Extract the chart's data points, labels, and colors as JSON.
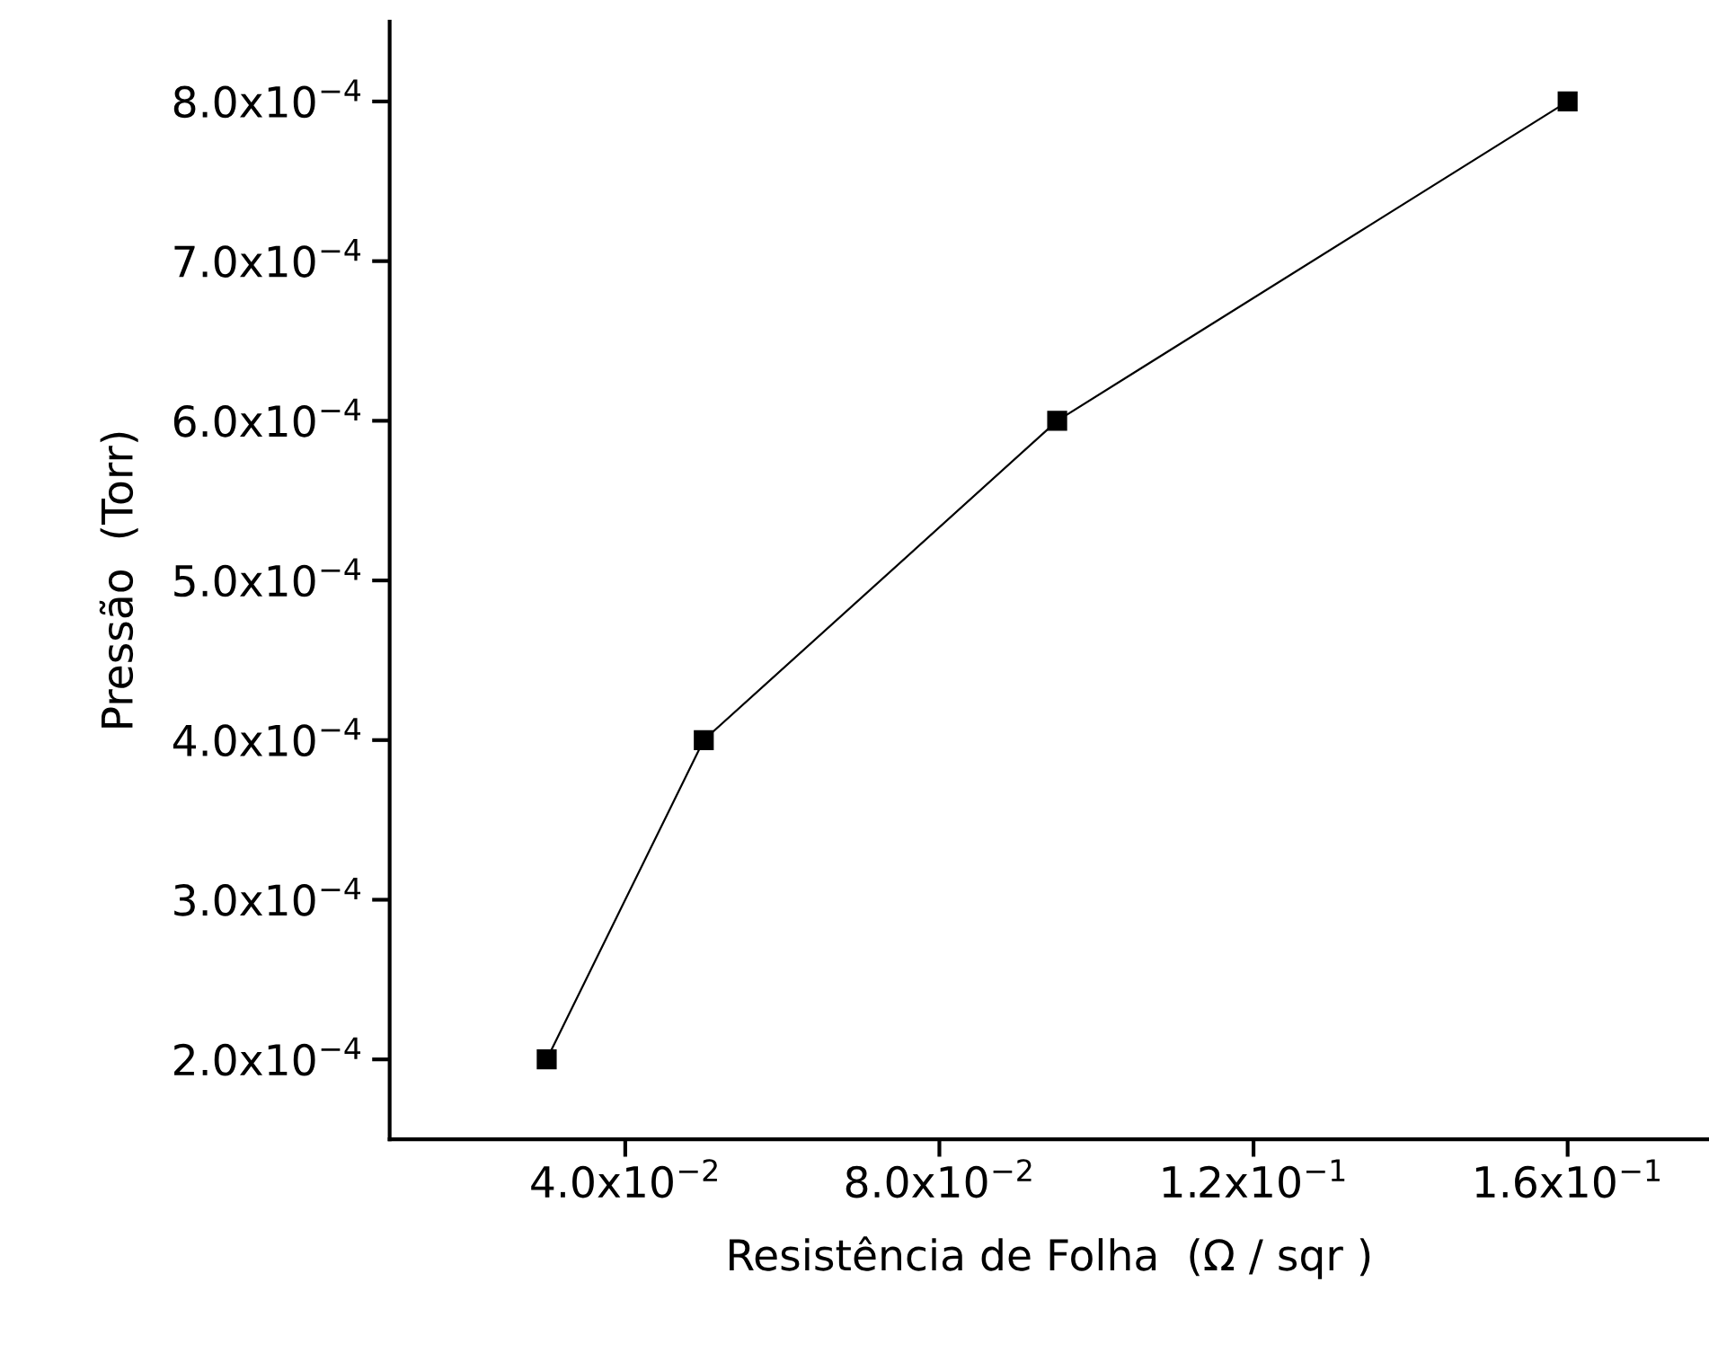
{
  "chart_data": {
    "type": "line",
    "xlabel": "Resistência de Folha  (Ω / sqr )",
    "ylabel": "Pressão  (Torr)",
    "x": [
      0.03,
      0.05,
      0.095,
      0.16
    ],
    "series": [
      {
        "color": "#000000",
        "values": [
          0.0002,
          0.0004,
          0.0006,
          0.0008
        ]
      }
    ],
    "marker": "square",
    "line_style": "solid",
    "grid": false,
    "legend": false,
    "xlim": [
      0.01,
      0.178
    ],
    "ylim": [
      0.00015,
      0.00085
    ],
    "xticks": [
      {
        "value": 0.04,
        "label": "4.0x10$^{−2}$"
      },
      {
        "value": 0.08,
        "label": "8.0x10$^{−2}$"
      },
      {
        "value": 0.12,
        "label": "1.2x10$^{−1}$"
      },
      {
        "value": 0.16,
        "label": "1.6x10$^{−1}$"
      }
    ],
    "yticks": [
      {
        "value": 0.0002,
        "label": "2.0x10$^{−4}$"
      },
      {
        "value": 0.0003,
        "label": "3.0x10$^{−4}$"
      },
      {
        "value": 0.0004,
        "label": "4.0x10$^{−4}$"
      },
      {
        "value": 0.0005,
        "label": "5.0x10$^{−4}$"
      },
      {
        "value": 0.0006,
        "label": "6.0x10$^{−4}$"
      },
      {
        "value": 0.0007,
        "label": "7.0x10$^{−4}$"
      },
      {
        "value": 0.0008,
        "label": "8.0x10$^{−4}$"
      }
    ]
  }
}
